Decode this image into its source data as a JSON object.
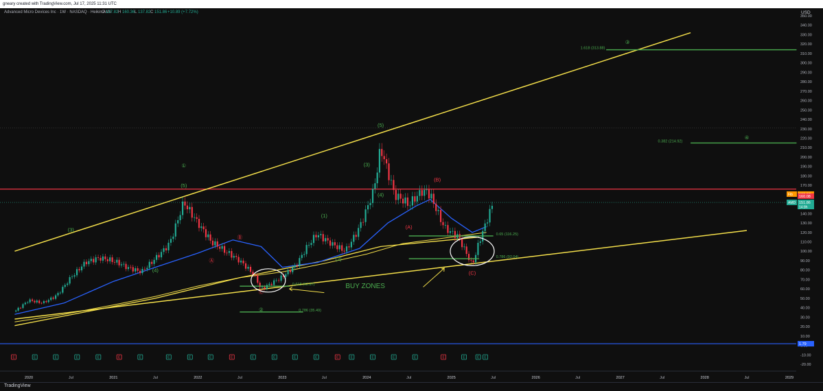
{
  "header": {
    "attribution": "gneary created with TradingView.com, Jul 17, 2025 11:31 UTC"
  },
  "footer": {
    "logo_text": "TradingView"
  },
  "chart_data": {
    "type": "candlestick",
    "title": "Advanced Micro Devices Inc · 1W · NASDAQ · Heikin Ashi",
    "ohlc_legend": {
      "O": "137.82",
      "H": "160.36",
      "L": "137.82",
      "C": "151.86",
      "change": "+10.89 (+7.72%)"
    },
    "currency": "USD",
    "ylim": [
      -25,
      355
    ],
    "y_ticks": [
      -20,
      -10,
      0,
      10,
      20,
      30,
      40,
      50,
      60,
      70,
      80,
      90,
      100,
      110,
      120,
      130,
      140,
      150,
      160,
      170,
      180,
      190,
      200,
      210,
      220,
      230,
      240,
      250,
      260,
      270,
      280,
      290,
      300,
      310,
      320,
      330,
      340,
      350
    ],
    "x_labels": [
      "2020",
      "Jul",
      "2021",
      "Jul",
      "2022",
      "Jul",
      "2023",
      "Jul",
      "2024",
      "Jul",
      "2025",
      "Jul",
      "2026",
      "Jul",
      "2027",
      "Jul",
      "2028",
      "Jul",
      "2029"
    ],
    "price_series": {
      "name": "AMD",
      "note": "weekly Heikin Ashi close, approximate",
      "x": [
        "2019-11",
        "2020-01",
        "2020-03",
        "2020-05",
        "2020-07",
        "2020-09",
        "2020-11",
        "2021-01",
        "2021-03",
        "2021-05",
        "2021-07",
        "2021-09",
        "2021-11",
        "2022-01",
        "2022-03",
        "2022-05",
        "2022-07",
        "2022-09",
        "2022-10",
        "2022-12",
        "2023-01",
        "2023-03",
        "2023-05",
        "2023-06",
        "2023-08",
        "2023-10",
        "2023-12",
        "2024-02",
        "2024-03",
        "2024-05",
        "2024-07",
        "2024-09",
        "2024-10",
        "2024-12",
        "2025-02",
        "2025-04",
        "2025-05",
        "2025-07"
      ],
      "values": [
        36,
        48,
        45,
        53,
        72,
        88,
        93,
        90,
        83,
        78,
        92,
        108,
        152,
        130,
        110,
        100,
        90,
        75,
        60,
        68,
        73,
        85,
        110,
        118,
        108,
        100,
        125,
        165,
        210,
        160,
        150,
        165,
        160,
        125,
        115,
        85,
        110,
        152
      ]
    },
    "ma_blue": {
      "x": [
        "2019-11",
        "2020-06",
        "2021-01",
        "2021-07",
        "2022-01",
        "2022-06",
        "2022-10",
        "2023-01",
        "2023-06",
        "2023-12",
        "2024-04",
        "2024-08",
        "2024-10",
        "2025-01",
        "2025-04",
        "2025-06"
      ],
      "values": [
        33,
        45,
        68,
        83,
        98,
        112,
        105,
        83,
        88,
        103,
        130,
        148,
        155,
        135,
        120,
        126
      ]
    },
    "ma_yellow": {
      "x": [
        "2019-11",
        "2020-06",
        "2021-01",
        "2021-07",
        "2022-01",
        "2022-07",
        "2023-01",
        "2023-07",
        "2024-01",
        "2024-06",
        "2025-01",
        "2025-06"
      ],
      "values": [
        25,
        33,
        43,
        52,
        63,
        72,
        78,
        87,
        97,
        108,
        115,
        120
      ]
    },
    "channel_upper": {
      "x": [
        "2019-11",
        "2027-11"
      ],
      "values": [
        100,
        332
      ]
    },
    "channel_lower": {
      "x": [
        "2019-11",
        "2028-07"
      ],
      "values": [
        28,
        122
      ]
    },
    "support_curve": {
      "x": [
        "2019-11",
        "2021-07",
        "2022-07",
        "2023-07",
        "2024-03",
        "2025-05"
      ],
      "values": [
        21,
        50,
        72,
        90,
        105,
        115
      ]
    },
    "horizontal_lines": [
      {
        "label": "",
        "value": 166,
        "color": "#f23645"
      },
      {
        "label": "",
        "value": 1.79,
        "color": "#2962ff"
      }
    ],
    "fib_levels": [
      {
        "label": "1.618 (313.88)",
        "value": 313.88
      },
      {
        "label": "0.382 (214.92)",
        "value": 214.92
      },
      {
        "label": "0.65 (116.25)",
        "value": 116.25
      },
      {
        "label": "0.786 (92.04)",
        "value": 92.04
      },
      {
        "label": "0.618 (62.87)",
        "value": 62.87
      },
      {
        "label": "0.786 (35.49)",
        "value": 35.49
      }
    ],
    "wave_labels_green": [
      "(3)",
      "(4)",
      "(5)",
      "①",
      "(1)",
      "(2)",
      "(3)",
      "(4)",
      "(5)",
      "②",
      "③",
      "④"
    ],
    "wave_labels_red": [
      "Ⓐ",
      "Ⓑ",
      "Ⓒ",
      "(A)",
      "(B)",
      "(C)"
    ],
    "annotation": "BUY ZONES",
    "price_badges": [
      {
        "label": "Fib",
        "value": "160.67",
        "color": "#ff9800"
      },
      {
        "label": "",
        "value": "160.08",
        "color": "#f23645"
      },
      {
        "label": "AMD",
        "value": "151.86",
        "sub": "14:8h",
        "color": "#22ab94"
      },
      {
        "label": "",
        "value": "1.79",
        "color": "#2962ff"
      }
    ],
    "earnings_markers": [
      "E",
      "E",
      "E",
      "E",
      "E",
      "E",
      "E",
      "E",
      "E",
      "E",
      "E",
      "E",
      "E",
      "E",
      "E",
      "E",
      "E",
      "E",
      "E",
      "E",
      "E",
      "E",
      "E",
      "E"
    ],
    "grid": false
  }
}
